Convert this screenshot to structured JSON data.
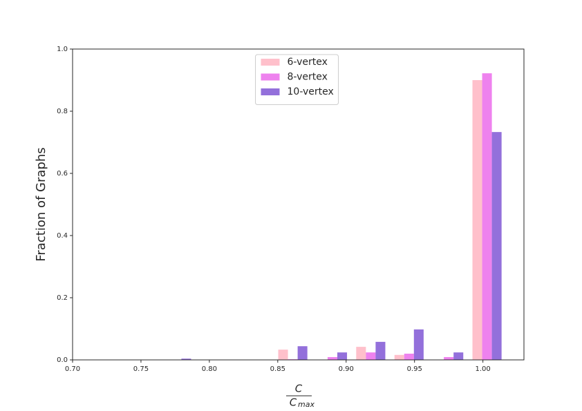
{
  "chart_data": {
    "type": "bar",
    "ylabel": "Fraction of Graphs",
    "xlabel": {
      "numerator": "C",
      "denominator": "C",
      "denominator_sub": "max"
    },
    "x": [
      0.776,
      0.861,
      0.89,
      0.918,
      0.946,
      0.975,
      1.003
    ],
    "series": [
      {
        "name": "6-vertex",
        "color": "#ffc0cb",
        "values": [
          0,
          0.033,
          0,
          0.042,
          0.016,
          0,
          0.9
        ]
      },
      {
        "name": "8-vertex",
        "color": "#ee82ee",
        "values": [
          0,
          0.002,
          0.009,
          0.024,
          0.02,
          0.009,
          0.922
        ]
      },
      {
        "name": "10-vertex",
        "color": "#9370db",
        "values": [
          0.004,
          0.044,
          0.024,
          0.058,
          0.098,
          0.024,
          0.733
        ]
      }
    ],
    "xlim": [
      0.7,
      1.03
    ],
    "ylim": [
      0,
      1.0
    ],
    "xticks": [
      {
        "value": 0.7,
        "label": "0.70"
      },
      0.75,
      {
        "value": 0.8,
        "label": "0.80"
      },
      0.85,
      {
        "value": 0.9,
        "label": "0.90"
      },
      0.95,
      {
        "value": 1.0,
        "label": "1.00"
      }
    ],
    "yticks": [
      {
        "value": 0,
        "label": "0.0"
      },
      0.2,
      0.4,
      0.6,
      0.8,
      {
        "value": 1.0,
        "label": "1.0"
      }
    ],
    "grid": false,
    "legend": "upper center"
  }
}
